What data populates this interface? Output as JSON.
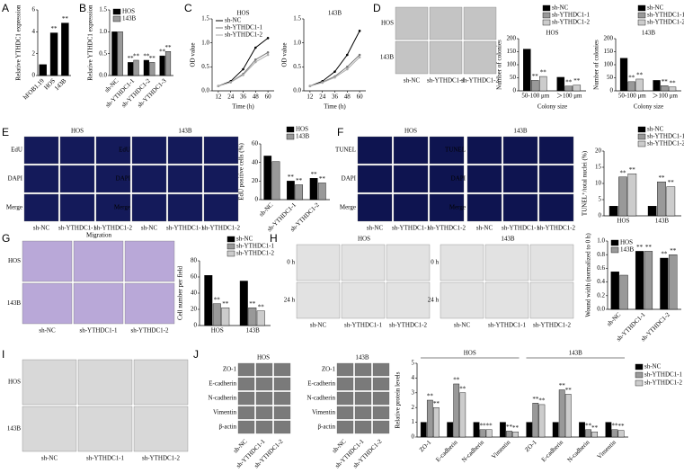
{
  "panels": {
    "letters": [
      "A",
      "B",
      "C",
      "D",
      "E",
      "F",
      "G",
      "H",
      "I",
      "J"
    ],
    "D": {
      "rows": [
        "HOS",
        "143B"
      ],
      "cols": [
        "sh-NC",
        "sh-YTHDC1-1",
        "sh-YTHDC1-2"
      ]
    },
    "E": {
      "groups": [
        "HOS",
        "143B"
      ],
      "rows": [
        "EdU",
        "DAPI",
        "Merge"
      ],
      "cols": [
        "sh-NC",
        "sh-YTHDC1-1",
        "sh-YTHDC1-2"
      ]
    },
    "F": {
      "groups": [
        "HOS",
        "143B"
      ],
      "rows": [
        "TUNEL",
        "DAPI",
        "Merge"
      ],
      "cols": [
        "sh-NC",
        "sh-YTHDC1-1",
        "sh-YTHDC1-2"
      ]
    },
    "G": {
      "title": "Migration",
      "rows": [
        "HOS",
        "143B"
      ],
      "cols": [
        "sh-NC",
        "sh-YTHDC1-1",
        "sh-YTHDC1-2"
      ]
    },
    "H": {
      "groups": [
        "HOS",
        "143B"
      ],
      "rows": [
        "0 h",
        "24 h"
      ],
      "cols": [
        "sh-NC",
        "sh-YTHDC1-1",
        "sh-YTHDC1-2"
      ]
    },
    "I": {
      "rows": [
        "HOS",
        "143B"
      ],
      "cols": [
        "sh-NC",
        "sh-YTHDC1-1",
        "sh-YTHDC1-2"
      ]
    },
    "J": {
      "groups": [
        "HOS",
        "143B"
      ],
      "rows": [
        "ZO-1",
        "E-cadherin",
        "N-cadherin",
        "Vimentin",
        "β-actin"
      ],
      "cols": [
        "sh-NC",
        "sh-YTHDC1-1",
        "sh-YTHDC1-2"
      ]
    }
  },
  "chart_data": [
    {
      "type": "bar",
      "ylabel": "Relative YTHDC1 expression",
      "categories": [
        "hFOB1.19",
        "HOS",
        "143B"
      ],
      "series": [
        {
          "color": "#000000",
          "values": [
            1,
            3.9,
            4.8
          ],
          "annotations": [
            null,
            "**",
            "**"
          ]
        }
      ],
      "ylim": [
        0,
        6
      ],
      "yticks": [
        0,
        2,
        4,
        6
      ]
    },
    {
      "type": "bar",
      "ylabel": "Relative YTHDC1 expression",
      "legend": "top-left",
      "categories": [
        "sh-NC",
        "sh-YTHDC1-1",
        "sh-YTHDC1-2",
        "sh-YTHDC1-3"
      ],
      "series": [
        {
          "name": "HOS",
          "color": "#000000",
          "values": [
            1.0,
            0.3,
            0.35,
            0.45
          ],
          "annotations": [
            null,
            "**",
            "**",
            "**"
          ]
        },
        {
          "name": "143B",
          "color": "#999999",
          "values": [
            1.0,
            0.35,
            0.3,
            0.55
          ],
          "annotations": [
            null,
            "**",
            "**",
            "**"
          ]
        }
      ],
      "ylim": [
        0,
        1.5
      ],
      "yticks": [
        {
          "value": 0,
          "label": "0.0"
        },
        0.5,
        {
          "value": 1,
          "label": "1.0"
        },
        1.5
      ]
    },
    {
      "type": "line",
      "title": "HOS",
      "ylabel": "OD value",
      "xlabel": "Time (h)",
      "legend": "top-left",
      "x": [
        12,
        24,
        36,
        48,
        60
      ],
      "series": [
        {
          "name": "sh-NC",
          "color": "#000000",
          "values": [
            0.1,
            0.2,
            0.45,
            0.9,
            1.1
          ]
        },
        {
          "name": "sh-YTHDC1-1",
          "color": "#777777",
          "values": [
            0.1,
            0.18,
            0.35,
            0.65,
            0.8
          ]
        },
        {
          "name": "sh-YTHDC1-2",
          "color": "#aaaaaa",
          "values": [
            0.1,
            0.18,
            0.33,
            0.6,
            0.75
          ]
        }
      ],
      "xlim": [
        6,
        66
      ],
      "xticks": [
        12,
        24,
        36,
        48,
        60
      ],
      "ylim": [
        0,
        1.5
      ],
      "yticks": [
        {
          "value": 0,
          "label": "0.0"
        },
        0.5,
        {
          "value": 1,
          "label": "1.0"
        },
        1.5
      ]
    },
    {
      "type": "line",
      "title": "143B",
      "ylabel": "OD value",
      "xlabel": "Time (h)",
      "x": [
        12,
        24,
        36,
        48,
        60
      ],
      "series": [
        {
          "color": "#000000",
          "values": [
            0.1,
            0.2,
            0.4,
            0.75,
            1.25
          ]
        },
        {
          "color": "#777777",
          "values": [
            0.1,
            0.18,
            0.3,
            0.5,
            0.75
          ]
        },
        {
          "color": "#aaaaaa",
          "values": [
            0.1,
            0.17,
            0.28,
            0.45,
            0.7
          ]
        }
      ],
      "xlim": [
        6,
        66
      ],
      "xticks": [
        12,
        24,
        36,
        48,
        60
      ],
      "ylim": [
        0,
        1.5
      ],
      "yticks": [
        {
          "value": 0,
          "label": "0.0"
        },
        0.5,
        {
          "value": 1,
          "label": "1.0"
        },
        1.5
      ]
    },
    {
      "type": "bar",
      "title": "HOS",
      "ylabel": "Number of colonies",
      "xlabel": "Colony size",
      "legend": "top-right",
      "categories": [
        "50-100 μm",
        "＞100 μm"
      ],
      "series": [
        {
          "name": "sh-NC",
          "color": "#000000",
          "values": [
            160,
            52
          ],
          "annotations": [
            null,
            null
          ]
        },
        {
          "name": "sh-YTHDC1-1",
          "color": "#999999",
          "values": [
            40,
            18
          ],
          "annotations": [
            "**",
            "**"
          ]
        },
        {
          "name": "sh-YTHDC1-2",
          "color": "#cccccc",
          "values": [
            55,
            22
          ],
          "annotations": [
            "**",
            "**"
          ]
        }
      ],
      "ylim": [
        0,
        200
      ],
      "yticks": [
        0,
        50,
        100,
        150,
        200
      ]
    },
    {
      "type": "bar",
      "title": "143B",
      "ylabel": "Number of colonies",
      "xlabel": "Colony size",
      "legend": "top-right",
      "categories": [
        "50-100 μm",
        "＞100 μm"
      ],
      "series": [
        {
          "name": "sh-NC",
          "color": "#000000",
          "values": [
            125,
            40
          ],
          "annotations": [
            null,
            null
          ]
        },
        {
          "name": "sh-YTHDC1-1",
          "color": "#999999",
          "values": [
            35,
            20
          ],
          "annotations": [
            "**",
            "**"
          ]
        },
        {
          "name": "sh-YTHDC1-2",
          "color": "#cccccc",
          "values": [
            45,
            15
          ],
          "annotations": [
            "**",
            "**"
          ]
        }
      ],
      "ylim": [
        0,
        200
      ],
      "yticks": [
        0,
        50,
        100,
        150,
        200
      ]
    },
    {
      "type": "bar",
      "ylabel": "EdU positive cells (%)",
      "legend": "top-right",
      "categories": [
        "sh-NC",
        "sh-YTHDC1-1",
        "sh-YTHDC1-2"
      ],
      "series": [
        {
          "name": "HOS",
          "color": "#000000",
          "values": [
            47,
            20,
            23
          ],
          "annotations": [
            null,
            "**",
            "**"
          ]
        },
        {
          "name": "143B",
          "color": "#999999",
          "values": [
            41,
            16,
            18
          ],
          "annotations": [
            null,
            "**",
            "**"
          ]
        }
      ],
      "ylim": [
        0,
        60
      ],
      "yticks": [
        0,
        20,
        40,
        60
      ]
    },
    {
      "type": "bar",
      "ylabel": "TUNEL⁺/total nuclei (%)",
      "legend": "top-right",
      "categories": [
        "HOS",
        "143B"
      ],
      "series": [
        {
          "name": "sh-NC",
          "color": "#000000",
          "values": [
            3,
            3
          ],
          "annotations": [
            null,
            null
          ]
        },
        {
          "name": "sh-YTHDC1-1",
          "color": "#999999",
          "values": [
            12,
            10.5
          ],
          "annotations": [
            "**",
            "**"
          ]
        },
        {
          "name": "sh-YTHDC1-2",
          "color": "#cccccc",
          "values": [
            13,
            9
          ],
          "annotations": [
            "**",
            "**"
          ]
        }
      ],
      "ylim": [
        0,
        20
      ],
      "yticks": [
        0,
        5,
        10,
        15,
        20
      ]
    },
    {
      "type": "bar",
      "ylabel": "Cell number per field",
      "legend": "top-right",
      "categories": [
        "HOS",
        "143B"
      ],
      "series": [
        {
          "name": "sh-NC",
          "color": "#000000",
          "values": [
            62,
            55
          ],
          "annotations": [
            null,
            null
          ]
        },
        {
          "name": "sh-YTHDC1-1",
          "color": "#999999",
          "values": [
            27,
            22
          ],
          "annotations": [
            "**",
            "**"
          ]
        },
        {
          "name": "sh-YTHDC1-2",
          "color": "#cccccc",
          "values": [
            22,
            18
          ],
          "annotations": [
            "**",
            "**"
          ]
        }
      ],
      "ylim": [
        0,
        80
      ],
      "yticks": [
        0,
        20,
        40,
        60,
        80
      ]
    },
    {
      "type": "bar",
      "ylabel": "Wound width (normalized to 0 h)",
      "legend": "top-left",
      "categories": [
        "sh-NC",
        "sh-YTHDC1-1",
        "sh-YTHDC1-2"
      ],
      "series": [
        {
          "name": "HOS",
          "color": "#000000",
          "values": [
            0.55,
            0.85,
            0.75
          ],
          "annotations": [
            null,
            "**",
            "**"
          ]
        },
        {
          "name": "143B",
          "color": "#999999",
          "values": [
            0.5,
            0.85,
            0.8
          ],
          "annotations": [
            null,
            "**",
            "**"
          ]
        }
      ],
      "ylim": [
        0,
        1.0
      ],
      "yticks": [
        {
          "value": 0,
          "label": "0.0"
        },
        0.2,
        0.4,
        0.6,
        0.8,
        {
          "value": 1,
          "label": "1.0"
        }
      ]
    },
    {
      "type": "bar",
      "ylabel": "Relative protein levels",
      "legend": "right",
      "groups": [
        "HOS",
        "143B"
      ],
      "categories": [
        "ZO-1",
        "E-cadherin",
        "N-cadherin",
        "Vimentin",
        "ZO-1",
        "E-cadherin",
        "N-cadherin",
        "Vimentin"
      ],
      "series": [
        {
          "name": "sh-NC",
          "color": "#000000",
          "values": [
            1,
            1,
            1,
            1,
            1,
            1,
            1,
            1
          ],
          "annotations": [
            null,
            null,
            null,
            null,
            null,
            null,
            null,
            null
          ]
        },
        {
          "name": "sh-YTHDC1-1",
          "color": "#999999",
          "values": [
            2.5,
            3.6,
            0.5,
            0.4,
            2.3,
            3.2,
            0.5,
            0.5
          ],
          "annotations": [
            "**",
            "**",
            "**",
            "**",
            "**",
            "**",
            "**",
            "**"
          ]
        },
        {
          "name": "sh-YTHDC1-2",
          "color": "#cccccc",
          "values": [
            2.0,
            3.0,
            0.5,
            0.35,
            2.2,
            2.9,
            0.35,
            0.45
          ],
          "annotations": [
            "**",
            "**",
            "**",
            "**",
            "**",
            "**",
            "**",
            "**"
          ]
        }
      ],
      "ylim": [
        0,
        5
      ],
      "yticks": [
        0,
        1,
        2,
        3,
        4,
        5
      ]
    }
  ]
}
